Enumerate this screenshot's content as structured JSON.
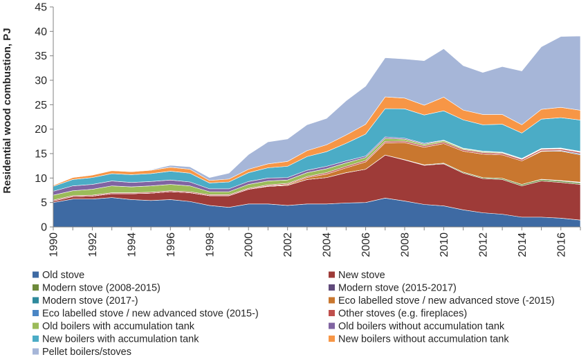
{
  "chart_data": {
    "type": "area",
    "stacked": true,
    "ylabel": "Residential wood combustion, PJ",
    "xlabel": "",
    "ylim": [
      0,
      45
    ],
    "yticks": [
      0,
      5,
      10,
      15,
      20,
      25,
      30,
      35,
      40,
      45
    ],
    "xlim": [
      1990,
      2017
    ],
    "xticks": [
      1990,
      1992,
      1994,
      1996,
      1998,
      2000,
      2002,
      2004,
      2006,
      2008,
      2010,
      2012,
      2014,
      2016
    ],
    "x": [
      1990,
      1991,
      1992,
      1993,
      1994,
      1995,
      1996,
      1997,
      1998,
      1999,
      2000,
      2001,
      2002,
      2003,
      2004,
      2005,
      2006,
      2007,
      2008,
      2009,
      2010,
      2011,
      2012,
      2013,
      2014,
      2015,
      2016,
      2017
    ],
    "grid": false,
    "legend_position": "bottom",
    "series": [
      {
        "name": "Old stove",
        "color": "#3e6aa3",
        "values": [
          5.0,
          5.7,
          5.7,
          6.0,
          5.6,
          5.4,
          5.6,
          5.2,
          4.4,
          4.0,
          4.7,
          4.7,
          4.4,
          4.7,
          4.7,
          4.9,
          5.0,
          5.9,
          5.3,
          4.6,
          4.3,
          3.5,
          2.9,
          2.6,
          2.0,
          2.0,
          1.8,
          1.4
        ]
      },
      {
        "name": "New stove",
        "color": "#9e3b38",
        "values": [
          0.3,
          0.5,
          0.6,
          0.8,
          1.2,
          1.5,
          1.6,
          1.8,
          2.0,
          2.4,
          3.0,
          3.6,
          4.1,
          5.0,
          5.4,
          6.2,
          6.8,
          8.8,
          8.4,
          8.0,
          8.6,
          7.5,
          7.0,
          7.1,
          6.4,
          7.4,
          7.3,
          7.3
        ]
      },
      {
        "name": "Modern stove (2008-2015)",
        "color": "#6d8a3a",
        "values": [
          0,
          0,
          0,
          0,
          0,
          0,
          0,
          0,
          0,
          0,
          0,
          0,
          0,
          0,
          0,
          0,
          0,
          0,
          0.05,
          0.1,
          0.15,
          0.2,
          0.2,
          0.25,
          0.3,
          0.3,
          0.3,
          0.3
        ]
      },
      {
        "name": "Modern stove (2015-2017)",
        "color": "#604a7b",
        "values": [
          0,
          0,
          0,
          0,
          0,
          0,
          0,
          0,
          0,
          0,
          0,
          0,
          0,
          0,
          0,
          0,
          0,
          0,
          0,
          0,
          0,
          0,
          0,
          0,
          0,
          0.05,
          0.1,
          0.1
        ]
      },
      {
        "name": "Modern stove (2017-)",
        "color": "#2e8a9c",
        "values": [
          0,
          0,
          0,
          0,
          0,
          0,
          0,
          0,
          0,
          0,
          0,
          0,
          0,
          0,
          0,
          0,
          0,
          0,
          0,
          0,
          0,
          0,
          0,
          0,
          0,
          0,
          0,
          0.05
        ]
      },
      {
        "name": "Eco labelled stove / new advanced stove (-2015)",
        "color": "#c9772f",
        "values": [
          0,
          0,
          0,
          0,
          0,
          0,
          0,
          0,
          0,
          0,
          0,
          0.1,
          0.2,
          0.4,
          0.7,
          1.0,
          1.5,
          2.5,
          3.5,
          3.6,
          4.0,
          4.3,
          4.8,
          4.8,
          4.8,
          5.7,
          6.0,
          5.6
        ]
      },
      {
        "name": "Eco labelled stove / new advanced stove (2015-)",
        "color": "#4a86c5",
        "values": [
          0,
          0,
          0,
          0,
          0,
          0,
          0,
          0,
          0,
          0,
          0,
          0,
          0,
          0,
          0,
          0,
          0,
          0,
          0,
          0,
          0,
          0,
          0,
          0,
          0,
          0.1,
          0.15,
          0.2
        ]
      },
      {
        "name": "Other stoves (e.g. fireplaces)",
        "color": "#c0504d",
        "values": [
          0.2,
          0.2,
          0.2,
          0.2,
          0.2,
          0.2,
          0.2,
          0.2,
          0.2,
          0.2,
          0.2,
          0.2,
          0.2,
          0.2,
          0.3,
          0.3,
          0.3,
          0.3,
          0.3,
          0.3,
          0.3,
          0.3,
          0.3,
          0.3,
          0.3,
          0.3,
          0.3,
          0.3
        ]
      },
      {
        "name": "Old boilers with accumulation tank",
        "color": "#9bbb59",
        "values": [
          1.0,
          1.0,
          1.2,
          1.4,
          1.2,
          1.3,
          1.3,
          1.2,
          0.6,
          0.6,
          0.8,
          0.8,
          0.7,
          0.8,
          0.8,
          0.7,
          0.6,
          0.6,
          0.4,
          0.3,
          0.3,
          0.2,
          0.2,
          0.15,
          0.1,
          0.1,
          0.1,
          0.1
        ]
      },
      {
        "name": "Old boilers without accumulation tank",
        "color": "#8064a2",
        "values": [
          0.8,
          1.0,
          1.0,
          1.0,
          0.9,
          0.9,
          0.9,
          0.8,
          0.6,
          0.6,
          0.6,
          0.6,
          0.5,
          0.5,
          0.5,
          0.4,
          0.3,
          0.3,
          0.2,
          0.2,
          0.1,
          0.1,
          0.1,
          0.1,
          0.1,
          0.1,
          0.1,
          0.1
        ]
      },
      {
        "name": "New boilers with accumulation tank",
        "color": "#4bacc6",
        "values": [
          1.0,
          1.3,
          1.4,
          1.5,
          1.6,
          1.6,
          1.8,
          1.8,
          1.2,
          1.4,
          1.8,
          2.1,
          2.3,
          2.8,
          3.0,
          3.6,
          4.5,
          5.8,
          6.0,
          5.8,
          6.0,
          5.8,
          5.4,
          5.7,
          5.2,
          6.0,
          6.2,
          6.4
        ]
      },
      {
        "name": "New boilers without accumulation tank",
        "color": "#f79646",
        "values": [
          0.2,
          0.4,
          0.5,
          0.6,
          0.6,
          0.7,
          0.8,
          0.8,
          0.5,
          0.6,
          0.7,
          0.8,
          1.0,
          1.2,
          1.4,
          1.7,
          2.0,
          2.4,
          2.2,
          2.0,
          2.8,
          2.0,
          2.1,
          2.0,
          1.7,
          2.0,
          2.1,
          2.0
        ]
      },
      {
        "name": "Pellet boilers/stoves",
        "color": "#a6b6d8",
        "values": [
          0.0,
          0.0,
          0.0,
          0.0,
          0.0,
          0.1,
          0.4,
          0.5,
          0.6,
          1.2,
          3.0,
          4.5,
          4.6,
          5.3,
          5.4,
          7.0,
          7.8,
          8.0,
          8.0,
          9.1,
          9.9,
          9.1,
          8.6,
          9.8,
          11.0,
          12.8,
          14.5,
          15.2
        ]
      }
    ]
  }
}
